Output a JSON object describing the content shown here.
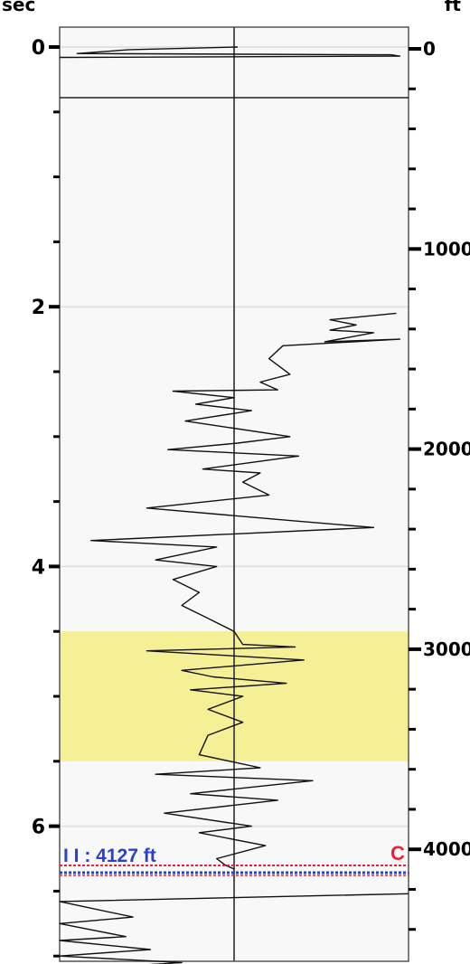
{
  "chart_data": {
    "type": "line",
    "title": "",
    "left_axis": {
      "unit": "sec",
      "ylim": [
        -0.2,
        7.2
      ],
      "ticks": [
        0,
        2,
        4,
        6
      ],
      "tick_labels": [
        "0",
        "2",
        "4",
        "6"
      ]
    },
    "right_axis": {
      "unit": "ft",
      "ticks": [
        0,
        1000,
        2000,
        3000,
        4000
      ],
      "tick_labels": [
        "0",
        "1000",
        "2000",
        "3000",
        "4000"
      ]
    },
    "x_center": 0,
    "x_range": [
      -1,
      1
    ],
    "highlight_band": {
      "from_sec": 4.5,
      "to_sec": 5.5,
      "color": "#f5ef96"
    },
    "marker": {
      "label": "I I : 4127 ft",
      "flag": "C",
      "depth_sec": 6.33
    },
    "trace_segments": [
      {
        "name": "top",
        "points": [
          [
            0.02,
            0.0
          ],
          [
            -0.6,
            0.02
          ],
          [
            -0.9,
            0.05
          ],
          [
            0.9,
            0.06
          ],
          [
            0.95,
            0.07
          ],
          [
            -1.0,
            0.08
          ]
        ]
      },
      {
        "name": "main",
        "points": [
          [
            0.93,
            2.05
          ],
          [
            0.55,
            2.1
          ],
          [
            0.7,
            2.14
          ],
          [
            0.55,
            2.18
          ],
          [
            0.8,
            2.2
          ],
          [
            0.52,
            2.27
          ],
          [
            0.95,
            2.25
          ],
          [
            0.28,
            2.3
          ],
          [
            0.2,
            2.4
          ],
          [
            0.32,
            2.52
          ],
          [
            0.15,
            2.58
          ],
          [
            0.25,
            2.64
          ],
          [
            -0.35,
            2.65
          ],
          [
            0.0,
            2.7
          ],
          [
            -0.22,
            2.75
          ],
          [
            0.1,
            2.8
          ],
          [
            -0.28,
            2.88
          ],
          [
            0.32,
            3.0
          ],
          [
            0.02,
            3.05
          ],
          [
            -0.38,
            3.1
          ],
          [
            0.37,
            3.15
          ],
          [
            -0.18,
            3.25
          ],
          [
            0.15,
            3.28
          ],
          [
            0.05,
            3.35
          ],
          [
            0.2,
            3.45
          ],
          [
            -0.5,
            3.55
          ],
          [
            0.35,
            3.65
          ],
          [
            0.8,
            3.7
          ],
          [
            -0.82,
            3.8
          ],
          [
            -0.1,
            3.85
          ],
          [
            -0.45,
            3.95
          ],
          [
            -0.1,
            4.0
          ],
          [
            -0.35,
            4.1
          ],
          [
            -0.2,
            4.2
          ],
          [
            -0.3,
            4.3
          ],
          [
            -0.15,
            4.4
          ],
          [
            0.0,
            4.5
          ],
          [
            0.05,
            4.6
          ],
          [
            0.35,
            4.62
          ],
          [
            -0.5,
            4.65
          ],
          [
            0.4,
            4.72
          ],
          [
            -0.3,
            4.8
          ],
          [
            -0.12,
            4.85
          ],
          [
            0.3,
            4.9
          ],
          [
            -0.25,
            4.95
          ],
          [
            0.05,
            5.0
          ],
          [
            -0.15,
            5.1
          ],
          [
            0.05,
            5.2
          ],
          [
            -0.15,
            5.3
          ],
          [
            -0.2,
            5.45
          ],
          [
            0.15,
            5.55
          ],
          [
            -0.45,
            5.6
          ],
          [
            0.45,
            5.65
          ],
          [
            -0.25,
            5.75
          ],
          [
            0.25,
            5.8
          ],
          [
            -0.4,
            5.9
          ],
          [
            0.1,
            6.0
          ],
          [
            -0.2,
            6.05
          ],
          [
            0.18,
            6.15
          ],
          [
            -0.1,
            6.25
          ],
          [
            -0.05,
            6.3
          ],
          [
            0.0,
            6.33
          ]
        ]
      },
      {
        "name": "bottom",
        "points": [
          [
            1.0,
            6.52
          ],
          [
            -1.0,
            6.58
          ],
          [
            -0.58,
            6.7
          ],
          [
            -1.0,
            6.75
          ],
          [
            -0.62,
            6.85
          ],
          [
            -1.0,
            6.88
          ],
          [
            -0.48,
            6.95
          ],
          [
            -1.0,
            7.0
          ],
          [
            -0.3,
            7.05
          ],
          [
            -0.9,
            7.1
          ]
        ]
      }
    ]
  }
}
